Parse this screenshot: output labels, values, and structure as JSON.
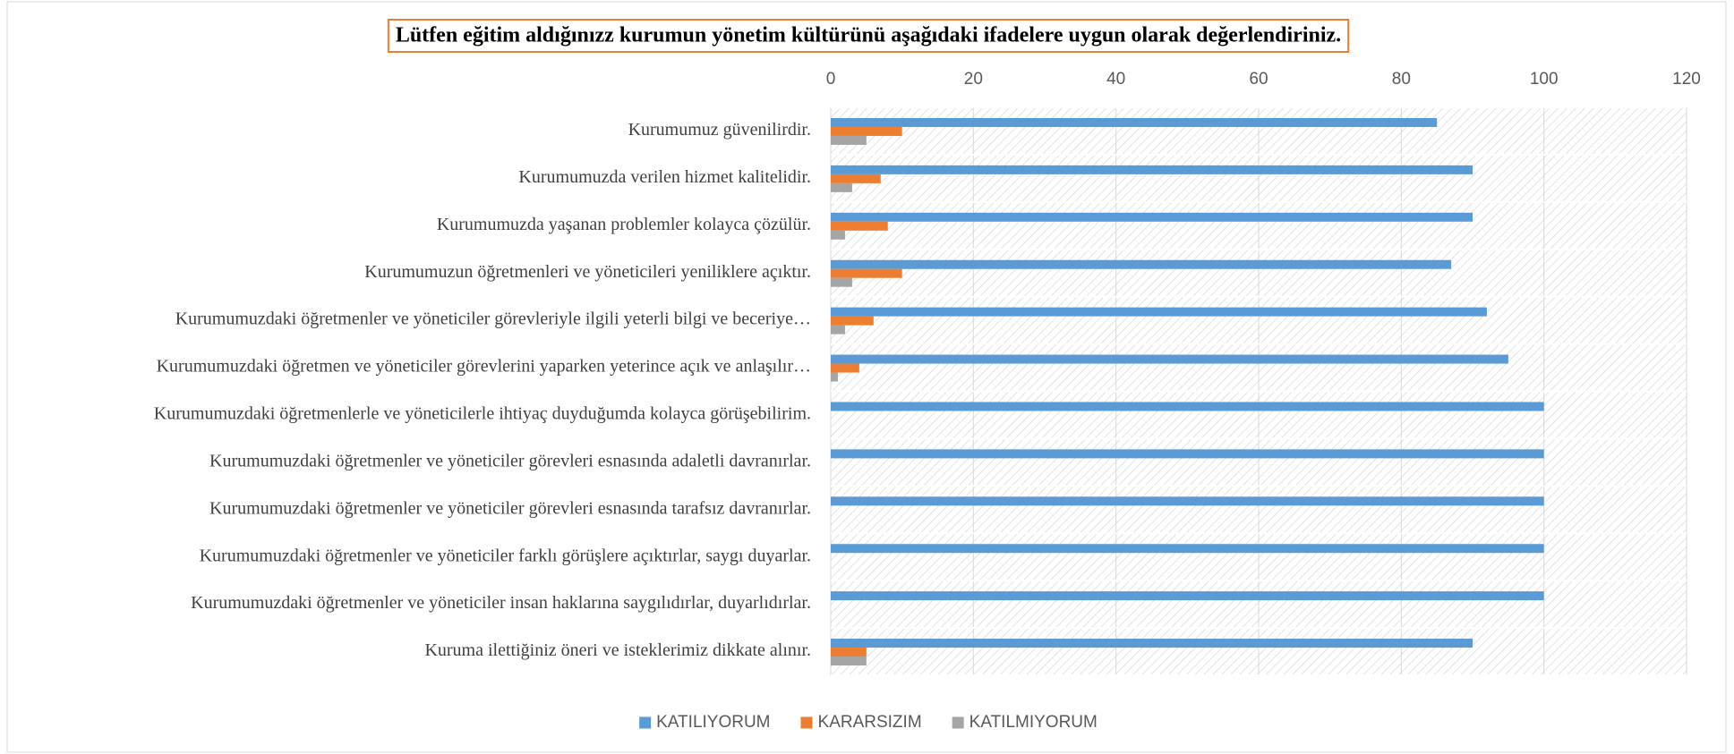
{
  "chart_data": {
    "type": "barh",
    "title": "Lütfen eğitim aldığınızz kurumun yönetim kültürünü aşağıdaki ifadelere uygun olarak değerlendiriniz.",
    "categories": [
      "Kurumumuz güvenilirdir.",
      "Kurumumuzda verilen hizmet kalitelidir.",
      "Kurumumuzda yaşanan problemler kolayca çözülür.",
      "Kurumumuzun öğretmenleri ve yöneticileri yeniliklere açıktır.",
      "Kurumumuzdaki öğretmenler ve yöneticiler görevleriyle ilgili yeterli bilgi ve beceriye…",
      "Kurumumuzdaki öğretmen ve yöneticiler görevlerini yaparken yeterince açık ve anlaşılır…",
      "Kurumumuzdaki öğretmenlerle ve yöneticilerle ihtiyaç duyduğumda kolayca görüşebilirim.",
      "Kurumumuzdaki öğretmenler ve yöneticiler görevleri esnasında adaletli davranırlar.",
      "Kurumumuzdaki öğretmenler ve yöneticiler görevleri esnasında tarafsız davranırlar.",
      "Kurumumuzdaki öğretmenler ve yöneticiler farklı görüşlere açıktırlar, saygı duyarlar.",
      "Kurumumuzdaki öğretmenler ve yöneticiler insan haklarına saygılıdırlar, duyarlıdırlar.",
      "Kuruma ilettiğiniz öneri ve isteklerimiz dikkate alınır."
    ],
    "series": [
      {
        "name": "KATILIYORUM",
        "color": "#5b9bd5",
        "values": [
          85,
          90,
          90,
          87,
          92,
          95,
          100,
          100,
          100,
          100,
          100,
          90
        ]
      },
      {
        "name": "KARARSIZIM",
        "color": "#ed7d31",
        "values": [
          10,
          7,
          8,
          10,
          6,
          4,
          0,
          0,
          0,
          0,
          0,
          5
        ]
      },
      {
        "name": "KATILMIYORUM",
        "color": "#a5a5a5",
        "values": [
          5,
          3,
          2,
          3,
          2,
          1,
          0,
          0,
          0,
          0,
          0,
          5
        ]
      }
    ],
    "xlim": [
      0,
      120
    ],
    "xticks": [
      0,
      20,
      40,
      60,
      80,
      100,
      120
    ],
    "grid": true,
    "legend": "bottom"
  }
}
